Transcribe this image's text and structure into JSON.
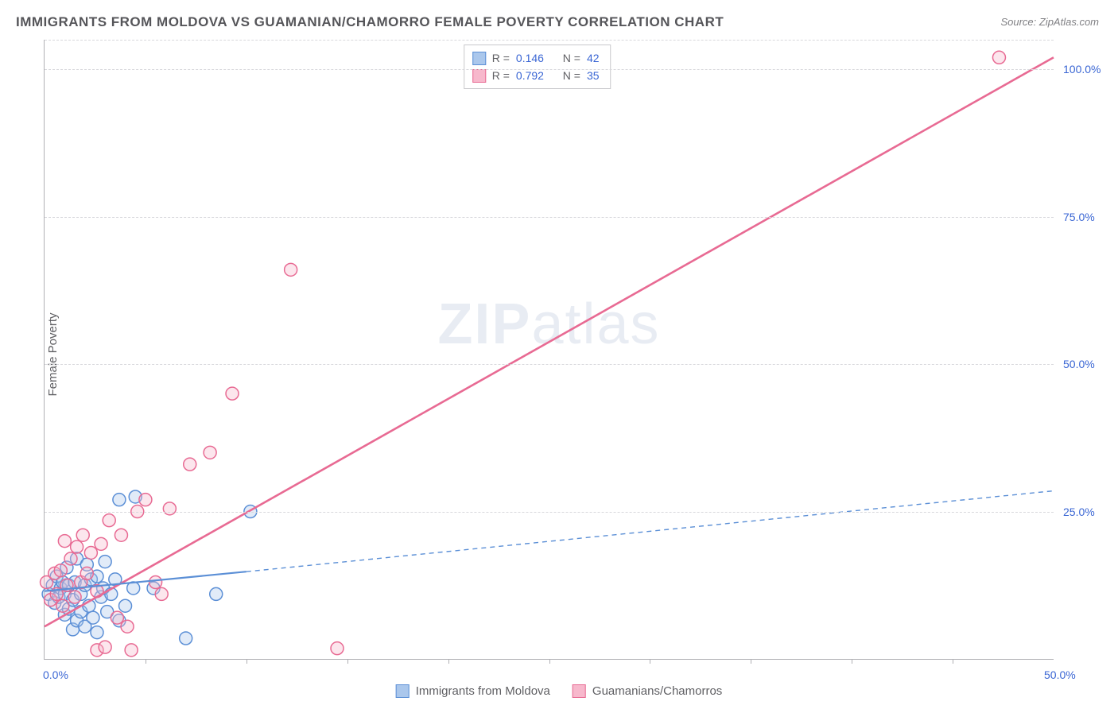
{
  "title": "IMMIGRANTS FROM MOLDOVA VS GUAMANIAN/CHAMORRO FEMALE POVERTY CORRELATION CHART",
  "source": "Source: ZipAtlas.com",
  "ylabel": "Female Poverty",
  "watermark_a": "ZIP",
  "watermark_b": "atlas",
  "chart": {
    "type": "scatter",
    "background_color": "#ffffff",
    "grid_color": "#d8d8dc",
    "axis_color": "#b0b0b4",
    "xlim": [
      0,
      50
    ],
    "ylim": [
      0,
      105
    ],
    "x_tick_step": 5,
    "y_ticks": [
      25,
      50,
      75,
      100
    ],
    "y_tick_labels": [
      "25.0%",
      "50.0%",
      "75.0%",
      "100.0%"
    ],
    "x_min_label": "0.0%",
    "x_max_label": "50.0%",
    "marker_radius": 8,
    "marker_stroke_width": 1.5,
    "marker_fill_opacity": 0.35,
    "label_fontsize": 14,
    "label_color": "#3a66d4",
    "series": [
      {
        "key": "moldova",
        "label": "Immigrants from Moldova",
        "color_stroke": "#5b8fd6",
        "color_fill": "#aac7ec",
        "R_label": "R =",
        "R_value": "0.146",
        "N_label": "N =",
        "N_value": "42",
        "trend_solid": {
          "x1": 0,
          "y1": 11.5,
          "x2": 10,
          "y2": 14.8
        },
        "trend_dash": {
          "x1": 10,
          "y1": 14.8,
          "x2": 50,
          "y2": 28.5
        },
        "line_width_solid": 2.2,
        "line_width_dash": 1.4,
        "dash_pattern": "6,5",
        "points": [
          [
            0.2,
            11
          ],
          [
            0.4,
            12.5
          ],
          [
            0.5,
            9.5
          ],
          [
            0.6,
            14
          ],
          [
            0.7,
            10.5
          ],
          [
            0.8,
            12
          ],
          [
            0.9,
            13
          ],
          [
            1.0,
            7.5
          ],
          [
            1.0,
            11
          ],
          [
            1.1,
            15.5
          ],
          [
            1.2,
            8.5
          ],
          [
            1.2,
            12.5
          ],
          [
            1.4,
            10
          ],
          [
            1.4,
            5
          ],
          [
            1.5,
            13
          ],
          [
            1.6,
            6.5
          ],
          [
            1.6,
            17
          ],
          [
            1.8,
            11
          ],
          [
            1.8,
            8
          ],
          [
            2.0,
            12.5
          ],
          [
            2.0,
            5.5
          ],
          [
            2.1,
            16
          ],
          [
            2.2,
            9
          ],
          [
            2.3,
            13.5
          ],
          [
            2.4,
            7
          ],
          [
            2.6,
            14
          ],
          [
            2.6,
            4.5
          ],
          [
            2.8,
            10.5
          ],
          [
            2.9,
            12
          ],
          [
            3.0,
            16.5
          ],
          [
            3.1,
            8
          ],
          [
            3.3,
            11
          ],
          [
            3.5,
            13.5
          ],
          [
            3.7,
            6.5
          ],
          [
            3.7,
            27
          ],
          [
            4.0,
            9
          ],
          [
            4.4,
            12
          ],
          [
            4.5,
            27.5
          ],
          [
            5.4,
            12
          ],
          [
            7.0,
            3.5
          ],
          [
            8.5,
            11
          ],
          [
            10.2,
            25
          ]
        ]
      },
      {
        "key": "guam",
        "label": "Guamanians/Chamorros",
        "color_stroke": "#e86a93",
        "color_fill": "#f7b8cc",
        "R_label": "R =",
        "R_value": "0.792",
        "N_label": "N =",
        "N_value": "35",
        "trend_solid": {
          "x1": 0,
          "y1": 5.5,
          "x2": 50,
          "y2": 102
        },
        "line_width_solid": 2.6,
        "points": [
          [
            0.1,
            13
          ],
          [
            0.3,
            10
          ],
          [
            0.5,
            14.5
          ],
          [
            0.6,
            11
          ],
          [
            0.8,
            15
          ],
          [
            0.9,
            9
          ],
          [
            1.0,
            20
          ],
          [
            1.1,
            12.5
          ],
          [
            1.3,
            17
          ],
          [
            1.5,
            10.5
          ],
          [
            1.6,
            19
          ],
          [
            1.8,
            13
          ],
          [
            1.9,
            21
          ],
          [
            2.1,
            14.5
          ],
          [
            2.3,
            18
          ],
          [
            2.6,
            11.5
          ],
          [
            2.6,
            1.5
          ],
          [
            2.8,
            19.5
          ],
          [
            3.0,
            2
          ],
          [
            3.2,
            23.5
          ],
          [
            3.6,
            7
          ],
          [
            3.8,
            21
          ],
          [
            4.1,
            5.5
          ],
          [
            4.6,
            25
          ],
          [
            4.3,
            1.5
          ],
          [
            5.0,
            27
          ],
          [
            5.5,
            13
          ],
          [
            5.8,
            11
          ],
          [
            6.2,
            25.5
          ],
          [
            7.2,
            33
          ],
          [
            8.2,
            35
          ],
          [
            9.3,
            45
          ],
          [
            12.2,
            66
          ],
          [
            14.5,
            1.8
          ],
          [
            47.3,
            102
          ]
        ]
      }
    ]
  }
}
